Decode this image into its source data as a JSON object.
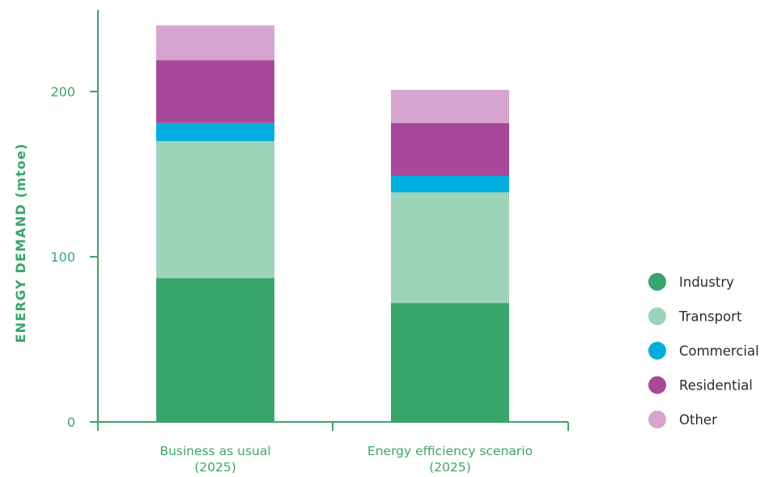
{
  "chart_data": {
    "type": "bar",
    "stacked": true,
    "categories": [
      [
        "Business as usual",
        "(2025)"
      ],
      [
        "Energy efficiency scenario",
        "(2025)"
      ]
    ],
    "series": [
      {
        "name": "Industry",
        "color": "#38a56b",
        "values": [
          87,
          72
        ]
      },
      {
        "name": "Transport",
        "color": "#9dd3b8",
        "values": [
          83,
          67
        ]
      },
      {
        "name": "Commercial",
        "color": "#00aee0",
        "values": [
          11,
          10
        ]
      },
      {
        "name": "Residential",
        "color": "#a8489a",
        "values": [
          38,
          32
        ]
      },
      {
        "name": "Other",
        "color": "#d7a4d0",
        "values": [
          21,
          20
        ]
      }
    ],
    "ylabel": "ENERGY DEMAND (mtoe)",
    "xlabel": "",
    "ylim": [
      0,
      240
    ],
    "yticks": [
      0,
      100,
      200
    ],
    "legend_position": "right",
    "grid": false,
    "axis_color": "#3aa66b"
  }
}
